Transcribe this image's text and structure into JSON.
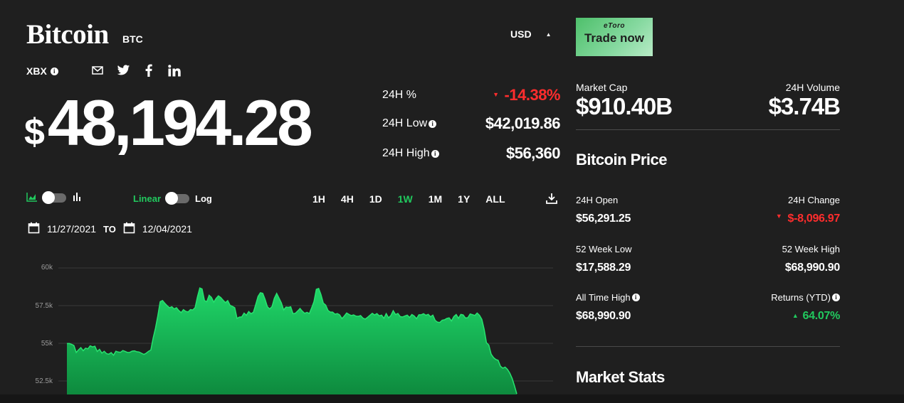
{
  "header": {
    "title": "Bitcoin",
    "ticker": "BTC",
    "currency": "USD",
    "symbol": "XBX",
    "social_icons": [
      "mail-icon",
      "twitter-icon",
      "facebook-icon",
      "linkedin-icon"
    ]
  },
  "ad": {
    "brand": "eToro",
    "cta": "Trade now"
  },
  "price": {
    "currency_sign": "$",
    "value": "48,194.28"
  },
  "stats": {
    "change_pct_label": "24H %",
    "change_pct_value": "-14.38%",
    "low_label": "24H Low",
    "low_value": "$42,019.86",
    "high_label": "24H High",
    "high_value": "$56,360"
  },
  "market": {
    "cap_label": "Market Cap",
    "cap_value": "$910.40B",
    "volume_label": "24H Volume",
    "volume_value": "$3.74B"
  },
  "bitcoin_price": {
    "title": "Bitcoin Price",
    "open_label": "24H Open",
    "open_value": "$56,291.25",
    "change_label": "24H Change",
    "change_value": "$-8,096.97",
    "wk52_low_label": "52 Week Low",
    "wk52_low_value": "$17,588.29",
    "wk52_high_label": "52 Week High",
    "wk52_high_value": "$68,990.90",
    "ath_label": "All Time High",
    "ath_value": "$68,990.90",
    "ytd_label": "Returns (YTD)",
    "ytd_value": "64.07%"
  },
  "market_stats_title": "Market Stats",
  "chart_controls": {
    "linear_label": "Linear",
    "log_label": "Log",
    "ranges": [
      "1H",
      "4H",
      "1D",
      "1W",
      "1M",
      "1Y",
      "ALL"
    ],
    "active_range": "1W",
    "date_from": "11/27/2021",
    "date_to_label": "TO",
    "date_to": "12/04/2021"
  },
  "colors": {
    "accent_green": "#21c95e",
    "negative_red": "#ff2d2d",
    "background": "#1f1f1f"
  },
  "chart_data": {
    "type": "area",
    "title": "",
    "xlabel": "",
    "ylabel": "",
    "y_ticks": [
      "60k",
      "57.5k",
      "55k",
      "52.5k"
    ],
    "y_tick_values": [
      60000,
      57500,
      55000,
      52500
    ],
    "ylim": [
      51600,
      60000
    ],
    "x_range": [
      "11/27/2021",
      "12/04/2021"
    ],
    "series": [
      {
        "values": [
          54980,
          54990,
          54930,
          54860,
          54390,
          54570,
          54710,
          54510,
          54680,
          54630,
          54830,
          54760,
          54800,
          54460,
          54600,
          54350,
          54470,
          54310,
          54280,
          54380,
          54210,
          54470,
          54420,
          54400,
          54520,
          54460,
          54390,
          54400,
          54480,
          54500,
          54440,
          54420,
          54340,
          54260,
          54340,
          54460,
          54550,
          55360,
          56000,
          56820,
          57760,
          57840,
          57660,
          57500,
          57360,
          57430,
          57280,
          57360,
          57170,
          57040,
          57230,
          57120,
          57080,
          57240,
          57210,
          57370,
          58090,
          58670,
          58610,
          57840,
          57760,
          58190,
          58050,
          57730,
          57980,
          58150,
          58040,
          57860,
          57700,
          57830,
          57520,
          57450,
          57360,
          56650,
          56740,
          56750,
          57000,
          56860,
          57110,
          56960,
          57060,
          57560,
          58110,
          58360,
          58320,
          57930,
          57430,
          57280,
          57440,
          57990,
          58310,
          58000,
          57680,
          57210,
          57400,
          57380,
          57420,
          56960,
          56990,
          57140,
          57310,
          57130,
          56990,
          57050,
          56970,
          57350,
          57770,
          58580,
          58640,
          58240,
          57670,
          57540,
          57180,
          57070,
          57070,
          56930,
          56970,
          56890,
          56640,
          56810,
          57010,
          56920,
          56840,
          56880,
          56800,
          56790,
          56840,
          56670,
          56610,
          56720,
          56860,
          56990,
          56880,
          56970,
          56820,
          56870,
          56660,
          56970,
          56690,
          56850,
          57160,
          56910,
          56980,
          56770,
          56750,
          56810,
          56870,
          56710,
          56910,
          56810,
          56630,
          56890,
          56890,
          56960,
          56860,
          56920,
          56760,
          56870,
          56520,
          56400,
          56380,
          56530,
          56560,
          56650,
          56690,
          56480,
          56780,
          56910,
          56660,
          56920,
          56880,
          56680,
          56700,
          56950,
          56900,
          56850,
          57010,
          56860,
          56590,
          55920,
          55040,
          54880,
          54280,
          54050,
          53930,
          53870,
          53470,
          53350,
          53420,
          53270,
          53020,
          52670,
          52190,
          51640
        ]
      }
    ]
  }
}
